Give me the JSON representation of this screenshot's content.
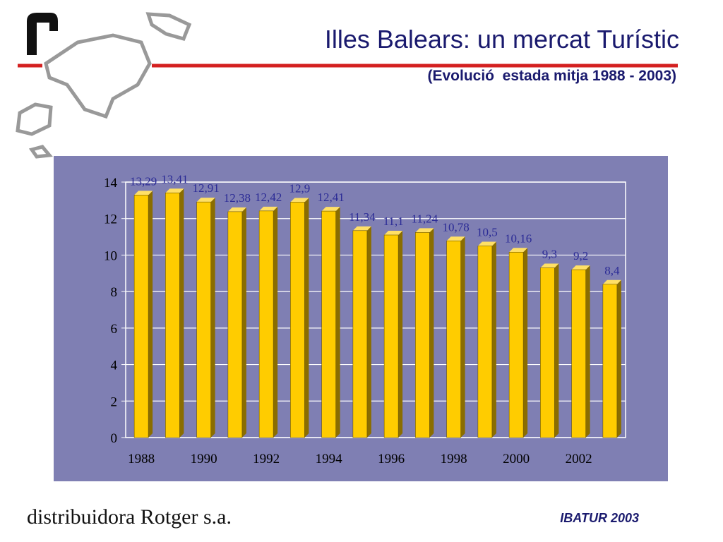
{
  "chart_data": {
    "type": "bar",
    "title": "Illes Balears: un mercat Turístic",
    "subtitle": "(Evolució  estada mitja 1988 - 2003)",
    "categories": [
      "1988",
      null,
      "1990",
      null,
      "1992",
      null,
      "1994",
      null,
      "1996",
      null,
      "1998",
      null,
      "2000",
      null,
      "2002",
      null
    ],
    "values": [
      13.29,
      13.41,
      12.91,
      12.38,
      12.42,
      12.9,
      12.41,
      11.34,
      11.1,
      11.24,
      10.78,
      10.5,
      10.16,
      9.3,
      9.2,
      8.4
    ],
    "value_labels": [
      "13,29",
      "13,41",
      "12,91",
      "12,38",
      "12,42",
      "12,9",
      "12,41",
      "11,34",
      "11,1",
      "11,24",
      "10,78",
      "10,5",
      "10,16",
      "9,3",
      "9,2",
      "8,4"
    ],
    "color": "#ffcc00",
    "ylim": [
      0,
      14
    ],
    "yticks": [
      0,
      2,
      4,
      6,
      8,
      10,
      12,
      14
    ],
    "grid": true
  },
  "footer": {
    "company": "distribuidora Rotger s.a.",
    "source": "IBATUR 2003"
  }
}
